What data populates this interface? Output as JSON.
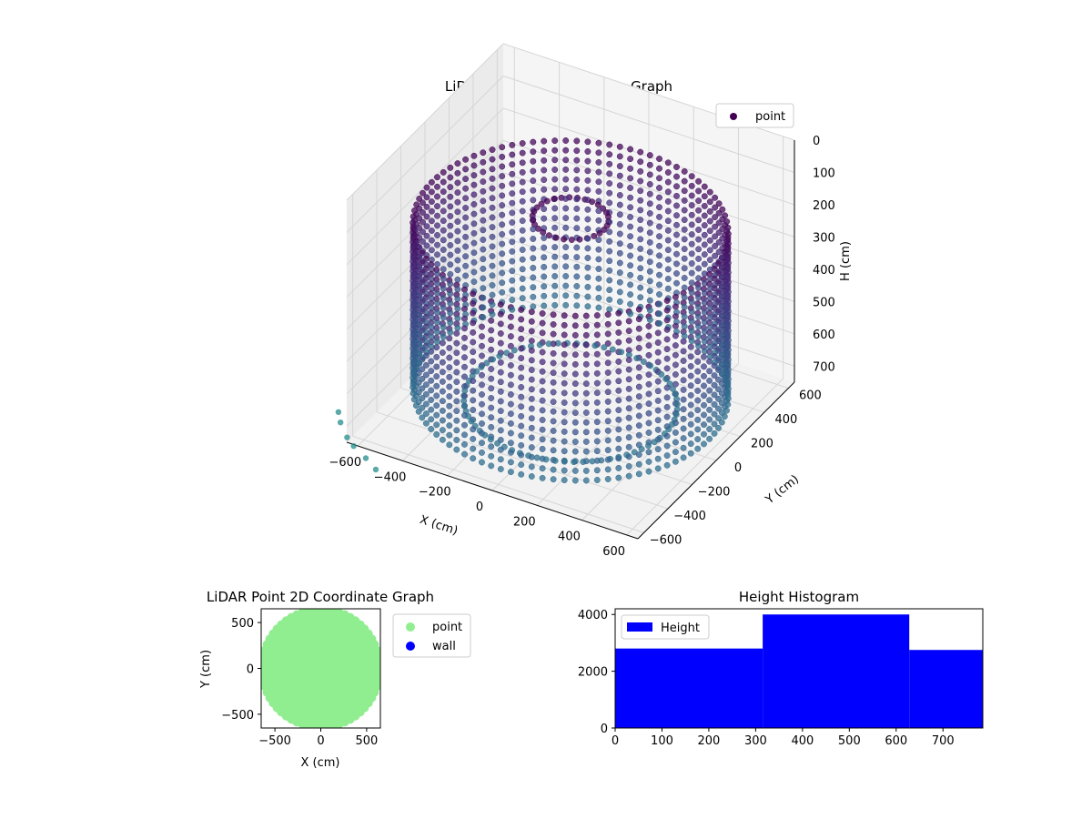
{
  "chart_data": [
    {
      "type": "scatter",
      "subtype": "scatter3d",
      "title": "LiDAR Point 3D Coordinate Graph",
      "xlabel": "X (cm)",
      "ylabel": "Y (cm)",
      "zlabel": "H (cm)",
      "xticks": [
        -600,
        -400,
        -200,
        0,
        200,
        400,
        600
      ],
      "yticks": [
        -600,
        -400,
        -200,
        0,
        200,
        400,
        600
      ],
      "zticks": [
        0,
        100,
        200,
        300,
        400,
        500,
        600,
        700
      ],
      "xlim": [
        -650,
        650
      ],
      "ylim": [
        -650,
        650
      ],
      "zlim": [
        0,
        750
      ],
      "z_inverted": true,
      "legend": {
        "entries": [
          "point"
        ],
        "placement": "top-right"
      },
      "colormap": "viridis",
      "series": [
        {
          "name": "point",
          "color": "#440154",
          "shape": "cylindrical room scan (walls at radius ~620 cm, ceiling & floor rings)"
        }
      ],
      "grid": true
    },
    {
      "type": "scatter",
      "title": "LiDAR Point 2D Coordinate Graph",
      "xlabel": "X (cm)",
      "ylabel": "Y (cm)",
      "xticks": [
        -500,
        0,
        500
      ],
      "yticks": [
        -500,
        0,
        500
      ],
      "xlim": [
        -650,
        650
      ],
      "ylim": [
        -650,
        650
      ],
      "legend": {
        "entries": [
          "point",
          "wall"
        ],
        "placement": "outside-right"
      },
      "series": [
        {
          "name": "point",
          "color": "#90ee90"
        },
        {
          "name": "wall",
          "color": "#0000ff"
        }
      ]
    },
    {
      "type": "bar",
      "subtype": "histogram",
      "title": "Height Histogram",
      "bins": [
        [
          0,
          315
        ],
        [
          315,
          628
        ],
        [
          628,
          785
        ]
      ],
      "values": [
        2800,
        4000,
        2750
      ],
      "xticks": [
        0,
        100,
        200,
        300,
        400,
        500,
        600,
        700
      ],
      "yticks": [
        0,
        2000,
        4000
      ],
      "xlim": [
        0,
        785
      ],
      "ylim": [
        0,
        4200
      ],
      "legend": {
        "entries": [
          "Height"
        ],
        "placement": "top-left"
      },
      "series": [
        {
          "name": "Height",
          "color": "#0000ff"
        }
      ]
    }
  ]
}
